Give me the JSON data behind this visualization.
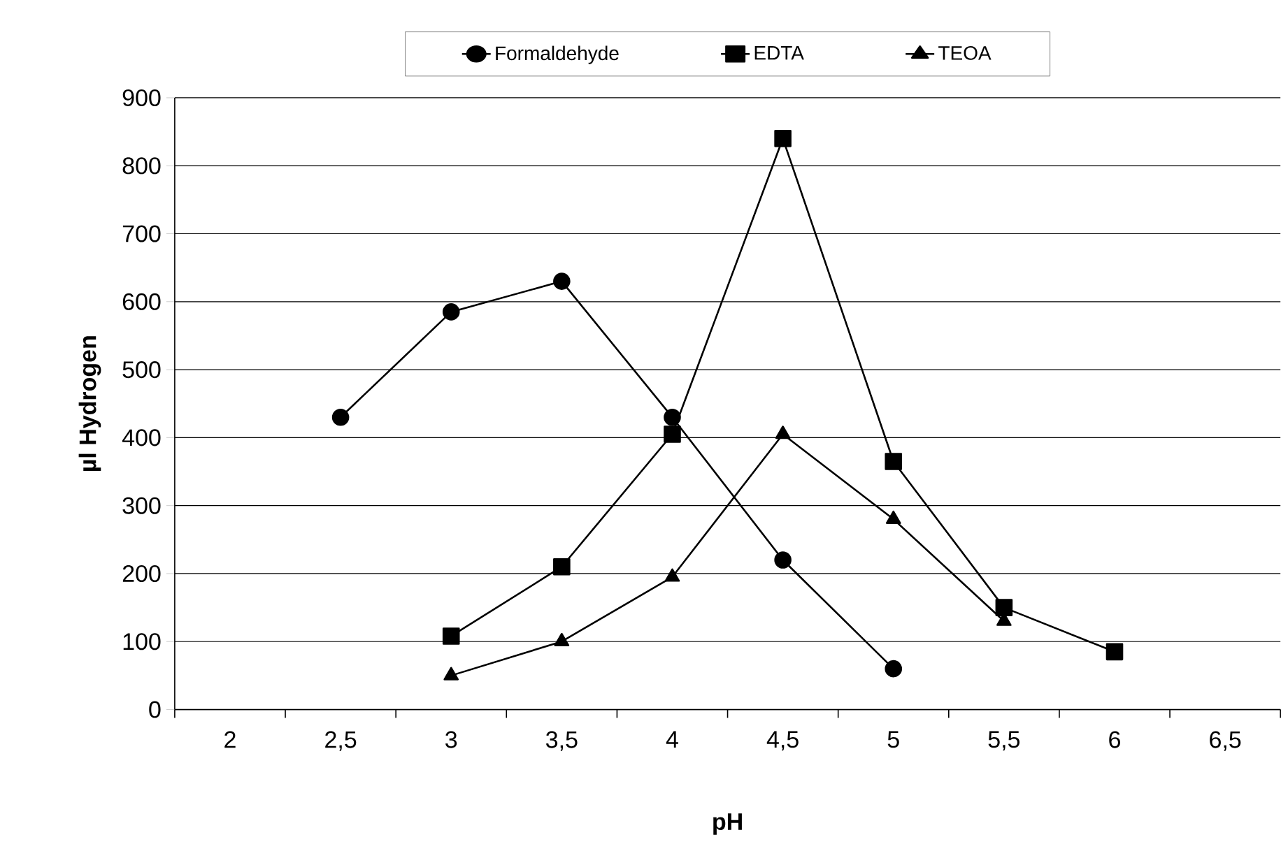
{
  "chart_data": {
    "type": "line",
    "xlabel": "pH",
    "ylabel": "µl Hydrogen",
    "categories": [
      "2",
      "2,5",
      "3",
      "3,5",
      "4",
      "4,5",
      "5",
      "5,5",
      "6",
      "6,5"
    ],
    "series": [
      {
        "name": "Formaldehyde",
        "color": "#000000",
        "marker": "circle",
        "values": [
          null,
          430,
          585,
          630,
          430,
          220,
          60,
          null,
          null,
          null
        ]
      },
      {
        "name": "EDTA",
        "color": "#000000",
        "marker": "square",
        "values": [
          null,
          null,
          108,
          210,
          405,
          840,
          365,
          150,
          85,
          null
        ]
      },
      {
        "name": "TEOA",
        "color": "#000000",
        "marker": "triangle",
        "values": [
          null,
          null,
          50,
          100,
          195,
          405,
          280,
          130,
          null,
          null
        ]
      }
    ],
    "ylim": [
      0,
      900
    ],
    "yticks": [
      0,
      100,
      200,
      300,
      400,
      500,
      600,
      700,
      800,
      900
    ],
    "grid": "y",
    "legend": "top",
    "line_style": "solid"
  }
}
